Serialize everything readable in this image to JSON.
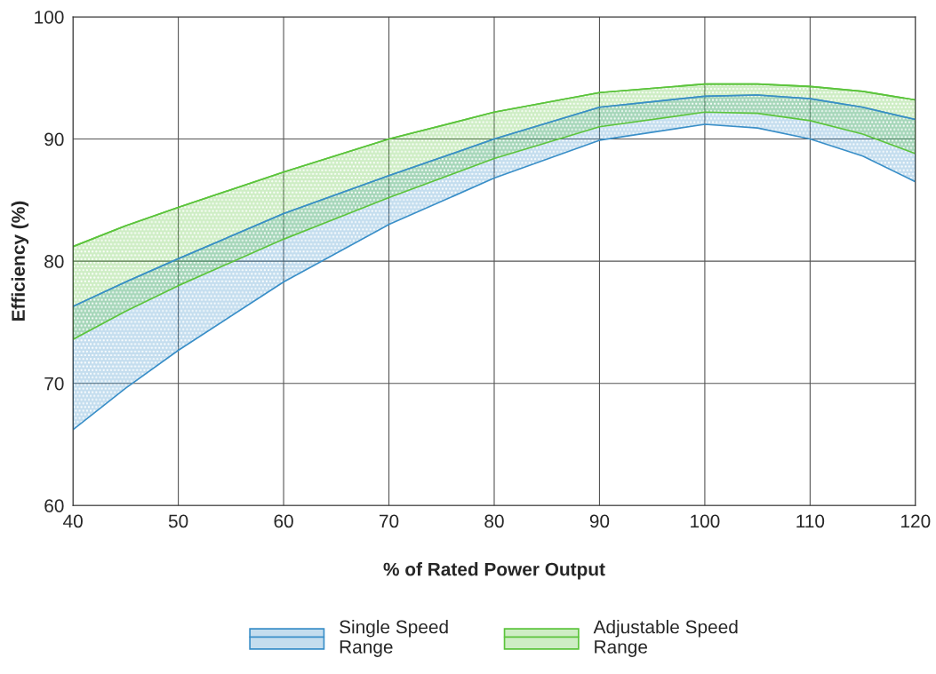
{
  "chart_data": {
    "type": "line",
    "xlabel": "% of Rated Power Output",
    "ylabel": "Efficiency (%)",
    "x": [
      40,
      45,
      50,
      60,
      70,
      80,
      90,
      100,
      105,
      110,
      115,
      120
    ],
    "series": [
      {
        "name": "Single Speed\nRange",
        "color": "#3a8fc8",
        "values": [
          76.3,
          78.3,
          80.2,
          83.9,
          87.0,
          90.0,
          92.6,
          93.5,
          93.6,
          93.3,
          92.6,
          91.6
        ],
        "upper": [
          76.3,
          78.3,
          80.2,
          83.9,
          87.0,
          90.0,
          92.6,
          93.5,
          93.6,
          93.3,
          92.6,
          91.6
        ],
        "lower": [
          66.2,
          69.6,
          72.7,
          78.3,
          83.0,
          86.8,
          89.9,
          91.2,
          90.9,
          90.0,
          88.6,
          86.5
        ]
      },
      {
        "name": "Adjustable Speed\nRange",
        "color": "#5cc43c",
        "values": [
          81.2,
          82.9,
          84.4,
          87.3,
          90.0,
          92.2,
          93.8,
          94.5,
          94.5,
          94.3,
          93.9,
          93.2
        ],
        "upper": [
          81.2,
          82.9,
          84.4,
          87.3,
          90.0,
          92.2,
          93.8,
          94.5,
          94.5,
          94.3,
          93.9,
          93.2
        ],
        "lower": [
          73.6,
          75.9,
          78.0,
          81.8,
          85.2,
          88.4,
          91.0,
          92.2,
          92.1,
          91.5,
          90.4,
          88.8
        ]
      }
    ],
    "xlim": [
      40,
      120
    ],
    "ylim": [
      60,
      100
    ],
    "xticks": [
      40,
      50,
      60,
      70,
      80,
      90,
      100,
      110,
      120
    ],
    "yticks": [
      60,
      70,
      80,
      90,
      100
    ],
    "grid": true,
    "legend": "bottom",
    "marker": "none"
  }
}
